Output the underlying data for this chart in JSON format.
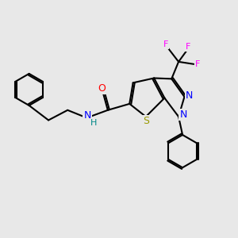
{
  "background_color": "#e8e8e8",
  "bond_color": "#000000",
  "atom_colors": {
    "O": "#ff0000",
    "N": "#0000ff",
    "S": "#999900",
    "F": "#ff00ff",
    "H": "#008888",
    "C": "#000000"
  },
  "figsize": [
    3.0,
    3.0
  ],
  "dpi": 100
}
